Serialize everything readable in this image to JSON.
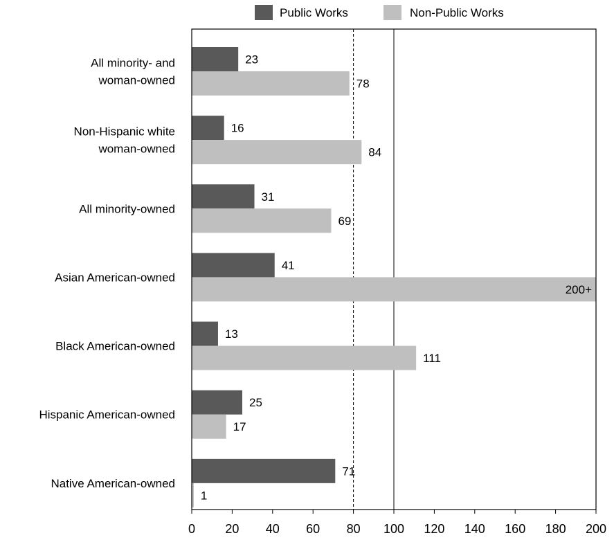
{
  "chart_data": {
    "type": "bar",
    "orientation": "horizontal",
    "categories": [
      [
        "All minority- and",
        "woman-owned"
      ],
      [
        "Non-Hispanic white",
        "woman-owned"
      ],
      [
        "All minority-owned"
      ],
      [
        "Asian American-owned"
      ],
      [
        "Black American-owned"
      ],
      [
        "Hispanic American-owned"
      ],
      [
        "Native American-owned"
      ]
    ],
    "series": [
      {
        "name": "Public Works",
        "color": "#595959",
        "values": [
          23,
          16,
          31,
          41,
          13,
          25,
          71
        ],
        "labels": [
          "23",
          "16",
          "31",
          "41",
          "13",
          "25",
          "71"
        ]
      },
      {
        "name": "Non-Public Works",
        "color": "#bfbfbf",
        "values": [
          78,
          84,
          69,
          200,
          111,
          17,
          1
        ],
        "labels": [
          "78",
          "84",
          "69",
          "200+",
          "111",
          "17",
          "1"
        ]
      }
    ],
    "xlim": [
      0,
      200
    ],
    "xticks": [
      "0",
      "20",
      "40",
      "60",
      "80",
      "100",
      "120",
      "140",
      "160",
      "180",
      "200"
    ],
    "reference_lines": [
      {
        "value": 80,
        "style": "dashed"
      },
      {
        "value": 100,
        "style": "solid"
      }
    ],
    "grid": false,
    "legend_position": "top"
  }
}
